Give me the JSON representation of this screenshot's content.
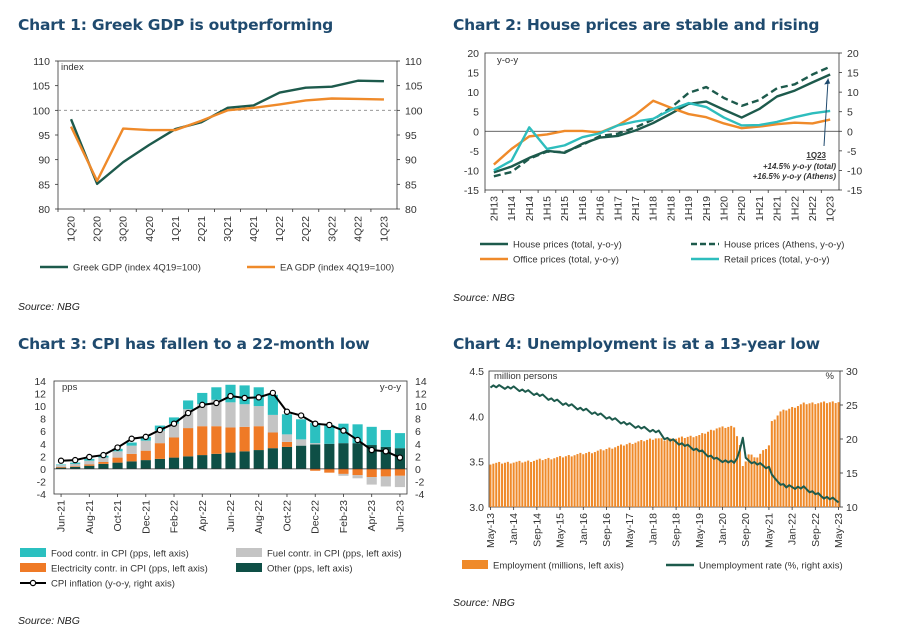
{
  "charts": [
    {
      "id": "c1",
      "title": "Chart 1: Greek GDP is outperforming",
      "source": "Source: NBG",
      "chart_data": {
        "type": "line",
        "categories": [
          "1Q20",
          "2Q20",
          "3Q20",
          "4Q20",
          "1Q21",
          "2Q21",
          "3Q21",
          "4Q21",
          "1Q22",
          "2Q22",
          "3Q22",
          "4Q22",
          "1Q23"
        ],
        "ylabel_left": "index",
        "ylim": [
          80,
          110
        ],
        "yticks": [
          80,
          85,
          90,
          95,
          100,
          105,
          110
        ],
        "reference_line": 100,
        "series": [
          {
            "name": "Greek GDP (index 4Q19=100)",
            "color": "#1d5a4c",
            "values": [
              98.2,
              85.1,
              89.5,
              93.0,
              96.2,
              97.6,
              100.5,
              101.0,
              103.6,
              104.6,
              104.8,
              106.0,
              105.9
            ]
          },
          {
            "name": "EA GDP (index 4Q19=100)",
            "color": "#ef8a2a",
            "values": [
              96.7,
              85.7,
              96.3,
              96.0,
              96.0,
              97.9,
              100.0,
              100.5,
              101.2,
              102.0,
              102.4,
              102.3,
              102.2
            ]
          }
        ]
      }
    },
    {
      "id": "c2",
      "title": "Chart 2: House prices are stable and rising",
      "source": "Source: NBG",
      "chart_data": {
        "type": "line",
        "categories": [
          "2H13",
          "1H14",
          "2H14",
          "1H15",
          "2H15",
          "1H16",
          "2H16",
          "1H17",
          "2H17",
          "1H18",
          "2H18",
          "1H19",
          "2H19",
          "1H20",
          "2H20",
          "1H21",
          "2H21",
          "1H22",
          "2H22",
          "1Q23"
        ],
        "ylabel_left": "y-o-y",
        "ylim": [
          -15,
          20
        ],
        "yticks": [
          -15,
          -10,
          -5,
          0,
          5,
          10,
          15,
          20
        ],
        "series": [
          {
            "name": "House prices (total, y-o-y)",
            "color": "#1d5a4c",
            "dash": false,
            "values": [
              -10.5,
              -9.0,
              -6.8,
              -5.0,
              -5.5,
              -3.2,
              -1.6,
              -1.2,
              0.2,
              2.1,
              4.5,
              7.0,
              7.6,
              5.5,
              3.5,
              5.7,
              8.9,
              10.4,
              12.5,
              14.5
            ]
          },
          {
            "name": "House prices (Athens, y-o-y)",
            "color": "#1d5a4c",
            "dash": true,
            "values": [
              -11.5,
              -10.4,
              -7.0,
              -5.2,
              -5.3,
              -3.5,
              -1.2,
              -0.6,
              1.0,
              3.0,
              6.0,
              9.8,
              11.3,
              8.5,
              6.5,
              8.0,
              11.0,
              12.0,
              14.5,
              16.5
            ]
          },
          {
            "name": "Office prices (total, y-o-y)",
            "color": "#ef8a2a",
            "dash": false,
            "values": [
              -8.5,
              -4.5,
              -1.3,
              -0.8,
              0.1,
              0.1,
              -0.3,
              1.5,
              4.2,
              7.8,
              6.0,
              4.4,
              3.6,
              2.0,
              0.8,
              1.2,
              1.8,
              2.2,
              2.0,
              3.0
            ]
          },
          {
            "name": "Retail prices (total, y-o-y)",
            "color": "#2ebdbd",
            "dash": false,
            "values": [
              -10.0,
              -7.5,
              1.0,
              -4.5,
              -3.6,
              -1.5,
              -0.5,
              1.5,
              2.5,
              3.2,
              5.5,
              7.2,
              6.2,
              3.5,
              1.5,
              1.6,
              2.4,
              3.6,
              4.6,
              5.2
            ]
          }
        ],
        "annotation": {
          "label": "1Q23",
          "lines": [
            "+14.5% y-o-y (total)",
            "+16.5% y-o-y (Athens)"
          ]
        }
      }
    },
    {
      "id": "c3",
      "title": "Chart 3: CPI has fallen to a 22-month low",
      "source": "Source: NBG",
      "chart_data": {
        "type": "bar",
        "stacked": true,
        "categories": [
          "Jun-21",
          "Jul-21",
          "Aug-21",
          "Sep-21",
          "Oct-21",
          "Nov-21",
          "Dec-21",
          "Jan-22",
          "Feb-22",
          "Mar-22",
          "Apr-22",
          "May-22",
          "Jun-22",
          "Jul-22",
          "Aug-22",
          "Sep-22",
          "Oct-22",
          "Nov-22",
          "Dec-22",
          "Jan-23",
          "Feb-23",
          "Mar-23",
          "Apr-23",
          "May-23",
          "Jun-23"
        ],
        "xtick_every": 2,
        "ylabel_left": "pps",
        "ylabel_right": "y-o-y",
        "ylim": [
          -4,
          14
        ],
        "yticks": [
          -4,
          -2,
          0,
          2,
          4,
          6,
          8,
          10,
          12,
          14
        ],
        "series": [
          {
            "name": "Other (pps, left axis)",
            "color": "#0e4f46",
            "values": [
              0.2,
              0.3,
              0.5,
              0.8,
              1.0,
              1.2,
              1.4,
              1.6,
              1.8,
              2.0,
              2.2,
              2.4,
              2.6,
              2.8,
              3.0,
              3.3,
              3.5,
              3.7,
              3.9,
              4.0,
              4.1,
              4.1,
              3.8,
              3.5,
              3.3
            ]
          },
          {
            "name": "Electricity contr. in CPI (pps, left axis)",
            "color": "#ef7a26",
            "values": [
              0.1,
              0.1,
              0.2,
              0.3,
              0.8,
              1.2,
              1.5,
              2.5,
              3.2,
              4.5,
              4.6,
              4.4,
              4.0,
              3.9,
              3.8,
              2.5,
              0.8,
              0.0,
              -0.3,
              -0.6,
              -0.8,
              -1.0,
              -1.3,
              -1.2,
              -1.1
            ]
          },
          {
            "name": "Fuel contr. in CPI (pps, left axis)",
            "color": "#c4c4c4",
            "values": [
              0.3,
              0.4,
              0.6,
              0.7,
              1.0,
              1.3,
              1.6,
              2.0,
              2.2,
              3.0,
              3.5,
              4.2,
              4.0,
              3.6,
              3.2,
              2.8,
              1.2,
              1.0,
              0.2,
              0.0,
              -0.3,
              -0.5,
              -1.2,
              -1.6,
              -1.8
            ]
          },
          {
            "name": "Food contr. in CPI (pps, left axis)",
            "color": "#2bc0c0",
            "values": [
              0.1,
              0.2,
              0.3,
              0.3,
              0.4,
              0.5,
              0.6,
              0.8,
              1.0,
              1.4,
              1.8,
              2.0,
              2.8,
              3.0,
              3.0,
              3.2,
              3.2,
              3.2,
              3.2,
              3.0,
              3.1,
              3.0,
              2.9,
              2.7,
              2.4
            ]
          }
        ],
        "line": {
          "name": "CPI inflation (y-o-y, right axis)",
          "color": "#000000",
          "values": [
            1.3,
            1.4,
            1.9,
            2.2,
            3.4,
            4.8,
            5.1,
            6.2,
            7.2,
            8.9,
            10.2,
            10.5,
            11.6,
            11.3,
            11.4,
            12.1,
            9.1,
            8.5,
            7.2,
            7.0,
            6.1,
            4.6,
            3.0,
            2.8,
            1.8
          ]
        }
      }
    },
    {
      "id": "c4",
      "title": "Chart 4: Unemployment is at a 13-year low",
      "source": "Source: NBG",
      "chart_data": {
        "type": "bar",
        "dual_axis": true,
        "categories": [
          "May-13",
          "Jan-14",
          "Sep-14",
          "May-15",
          "Jan-16",
          "Sep-16",
          "May-17",
          "Jan-18",
          "Sep-18",
          "May-19",
          "Jan-20",
          "Sep-20",
          "May-21",
          "Jan-22",
          "Sep-22",
          "May-23"
        ],
        "ylabel_left": "million persons",
        "ylabel_right": "%",
        "ylim": [
          3.0,
          4.5
        ],
        "yticks": [
          3.0,
          3.5,
          4.0,
          4.5
        ],
        "ylim_right": [
          10,
          30
        ],
        "yticks_right": [
          10,
          15,
          20,
          25,
          30
        ],
        "anchors_employment": [
          [
            0,
            3.48
          ],
          [
            12,
            3.5
          ],
          [
            24,
            3.55
          ],
          [
            36,
            3.61
          ],
          [
            48,
            3.7
          ],
          [
            57,
            3.76
          ],
          [
            60,
            3.74
          ],
          [
            72,
            3.79
          ],
          [
            78,
            3.87
          ],
          [
            84,
            3.89
          ],
          [
            86,
            3.68
          ],
          [
            87,
            3.44
          ],
          [
            89,
            3.58
          ],
          [
            92,
            3.55
          ],
          [
            96,
            3.68
          ],
          [
            97,
            3.94
          ],
          [
            100,
            4.05
          ],
          [
            108,
            4.14
          ],
          [
            120,
            4.16
          ]
        ],
        "anchors_unemployment": [
          [
            0,
            27.8
          ],
          [
            8,
            27.5
          ],
          [
            16,
            26.6
          ],
          [
            24,
            25.4
          ],
          [
            36,
            23.8
          ],
          [
            48,
            22.1
          ],
          [
            58,
            21.0
          ],
          [
            60,
            20.2
          ],
          [
            72,
            18.3
          ],
          [
            78,
            17.0
          ],
          [
            84,
            16.5
          ],
          [
            86,
            18.3
          ],
          [
            87,
            20.3
          ],
          [
            88,
            17.0
          ],
          [
            91,
            16.5
          ],
          [
            96,
            15.8
          ],
          [
            98,
            14.0
          ],
          [
            102,
            13.0
          ],
          [
            108,
            12.8
          ],
          [
            114,
            11.6
          ],
          [
            120,
            10.9
          ]
        ],
        "series": [
          {
            "name": "Employment (millions, left axis)",
            "color": "#ef8a2a"
          },
          {
            "name": "Unemployment rate (%, right axis)",
            "color": "#1d5a4c"
          }
        ]
      }
    }
  ]
}
